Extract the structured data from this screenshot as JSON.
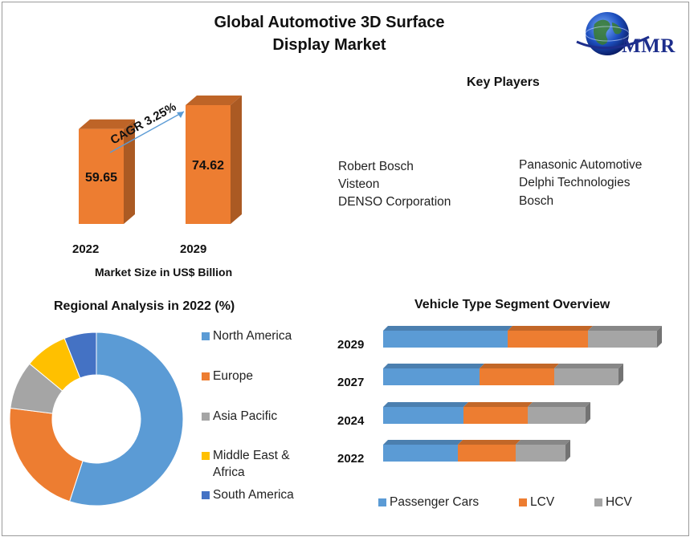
{
  "header": {
    "title_line1": "Global Automotive 3D Surface",
    "title_line2": "Display Market",
    "logo_text": "MMR"
  },
  "colors": {
    "orange": "#ed7d31",
    "orange_dark": "#b8561b",
    "blue": "#5b9bd5",
    "gray": "#a5a5a5",
    "yellow": "#ffc000",
    "dark_blue": "#4472c4"
  },
  "market_size_chart": {
    "type": "bar",
    "categories": [
      "2022",
      "2029"
    ],
    "values": [
      59.65,
      74.62
    ],
    "value_labels": [
      "59.65",
      "74.62"
    ],
    "xlabel": "Market Size in US$ Billion",
    "cagr_label": "CAGR 3.25%"
  },
  "key_players": {
    "title": "Key Players",
    "left": [
      "Robert Bosch",
      "Visteon",
      "DENSO Corporation"
    ],
    "right": [
      "Panasonic Automotive",
      "Delphi Technologies",
      "Bosch"
    ]
  },
  "chart_data": [
    {
      "type": "bar",
      "categories": [
        "2022",
        "2029"
      ],
      "values": [
        59.65,
        74.62
      ],
      "xlabel": "Market Size in US$ Billion"
    },
    {
      "type": "pie",
      "title": "Regional Analysis in 2022 (%)",
      "labels": [
        "North America",
        "Europe",
        "Asia Pacific",
        "Middle East & Africa",
        "South America"
      ],
      "legend_lines": [
        [
          "North America"
        ],
        [
          "Europe"
        ],
        [
          "Asia Pacific"
        ],
        [
          "Middle East &",
          "Africa"
        ],
        [
          "South America"
        ]
      ],
      "values": [
        55,
        22,
        9,
        8,
        6
      ],
      "colors": [
        "#5b9bd5",
        "#ed7d31",
        "#a5a5a5",
        "#ffc000",
        "#4472c4"
      ],
      "legend_position": "right"
    },
    {
      "type": "bar",
      "orientation": "horizontal",
      "stacked": true,
      "title": "Vehicle Type Segment Overview",
      "categories": [
        "2029",
        "2027",
        "2024",
        "2022"
      ],
      "series": [
        {
          "name": "Passenger Cars",
          "values": [
            155,
            120,
            100,
            93
          ],
          "color": "#5b9bd5"
        },
        {
          "name": "LCV",
          "values": [
            100,
            93,
            80,
            72
          ],
          "color": "#ed7d31"
        },
        {
          "name": "HCV",
          "values": [
            86,
            80,
            72,
            62
          ],
          "color": "#a5a5a5"
        }
      ],
      "legend_position": "bottom"
    }
  ]
}
